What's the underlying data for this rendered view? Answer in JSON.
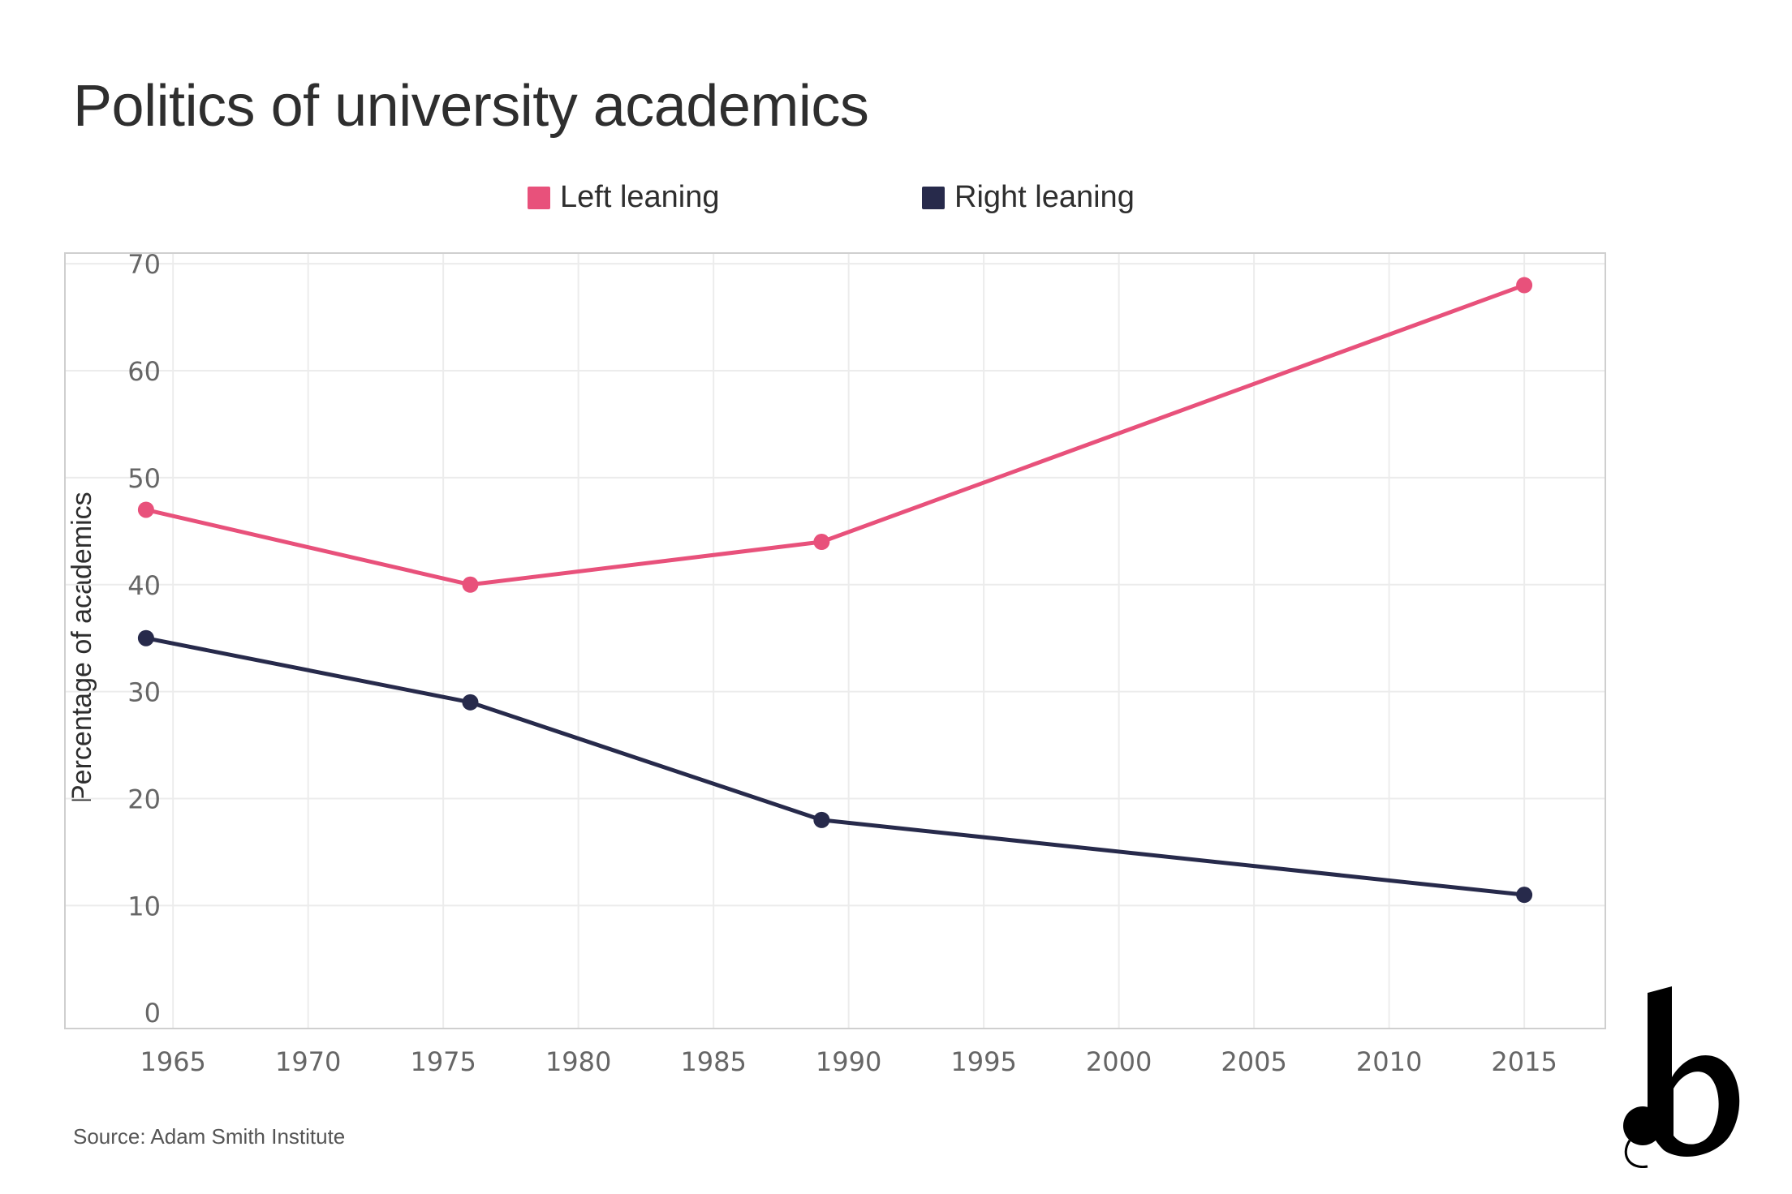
{
  "chart_data": {
    "type": "line",
    "title": "Politics of university academics",
    "ylabel": "Percentage of academics",
    "xlabel": "",
    "source": "Source: Adam Smith Institute",
    "xlim": [
      1961,
      2018
    ],
    "ylim": [
      -1.5,
      71
    ],
    "xticks": [
      1965,
      1970,
      1975,
      1980,
      1985,
      1990,
      1995,
      2000,
      2005,
      2010,
      2015
    ],
    "yticks": [
      0,
      10,
      20,
      30,
      40,
      50,
      60,
      70
    ],
    "grid": true,
    "legend_position": "top-center",
    "series": [
      {
        "name": "Left leaning",
        "color": "#e8517b",
        "x": [
          1964,
          1976,
          1989,
          2015
        ],
        "y": [
          47,
          40,
          44,
          68
        ]
      },
      {
        "name": "Right leaning",
        "color": "#272a4b",
        "x": [
          1964,
          1976,
          1989,
          2015
        ],
        "y": [
          35,
          29,
          18,
          11
        ]
      }
    ]
  }
}
